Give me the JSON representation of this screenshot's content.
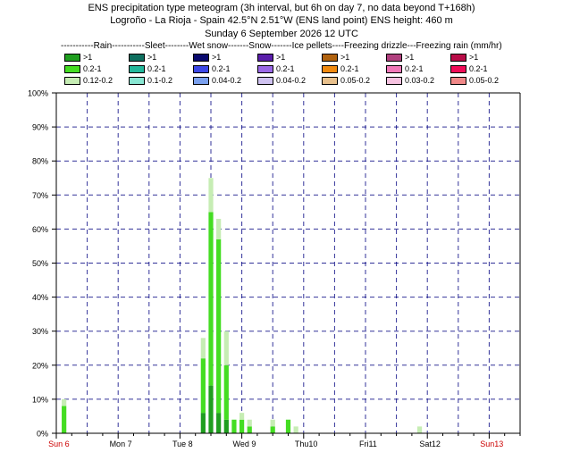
{
  "title_lines": [
    "ENS precipitation type meteogram (3h interval, but 6h on day 7, no data beyond T+168h)",
    "Logroño - La Rioja - Spain 42.5°N 2.51°W (ENS land point) ENS height: 460 m",
    "Sunday  6 September 2026 12 UTC"
  ],
  "legend_header": "-----------Rain-----------Sleet--------Wet snow-------Snow-------Ice pellets----Freezing drizzle---Freezing rain (mm/hr)",
  "legend": [
    {
      "type": "Rain",
      "entries": [
        {
          "label": ">1",
          "color": "#1f9e1f"
        },
        {
          "label": "0.2-1",
          "color": "#44dd22"
        },
        {
          "label": "0.12-0.2",
          "color": "#c6edb4"
        }
      ]
    },
    {
      "type": "Sleet",
      "entries": [
        {
          "label": ">1",
          "color": "#0d6e5e"
        },
        {
          "label": "0.2-1",
          "color": "#22b99c"
        },
        {
          "label": "0.1-0.2",
          "color": "#88e6d2"
        }
      ]
    },
    {
      "type": "Wet snow",
      "entries": [
        {
          "label": ">1",
          "color": "#0a0a6e"
        },
        {
          "label": "0.2-1",
          "color": "#3c48e6"
        },
        {
          "label": "0.04-0.2",
          "color": "#7aa0ee"
        }
      ]
    },
    {
      "type": "Snow",
      "entries": [
        {
          "label": ">1",
          "color": "#5a1eaa"
        },
        {
          "label": "0.2-1",
          "color": "#9a68e6"
        },
        {
          "label": "0.04-0.2",
          "color": "#cfc2f0"
        }
      ]
    },
    {
      "type": "Ice pellets",
      "entries": [
        {
          "label": ">1",
          "color": "#b0620e"
        },
        {
          "label": "0.2-1",
          "color": "#f08a10"
        },
        {
          "label": "0.05-0.2",
          "color": "#e8c08c"
        }
      ]
    },
    {
      "type": "Freezing drizzle",
      "entries": [
        {
          "label": ">1",
          "color": "#b0407e"
        },
        {
          "label": "0.2-1",
          "color": "#f078b8"
        },
        {
          "label": "0.03-0.2",
          "color": "#f6c2e0"
        }
      ]
    },
    {
      "type": "Freezing rain",
      "entries": [
        {
          "label": ">1",
          "color": "#b80c48"
        },
        {
          "label": "0.2-1",
          "color": "#f00c58"
        },
        {
          "label": "0.05-0.2",
          "color": "#f08888"
        }
      ]
    }
  ],
  "chart_data": {
    "type": "bar",
    "stacked": true,
    "unit": "%",
    "ylim": [
      0,
      100
    ],
    "yticks": [
      0,
      10,
      20,
      30,
      40,
      50,
      60,
      70,
      80,
      90,
      100
    ],
    "ytick_labels": [
      "0%",
      "10%",
      "20%",
      "30%",
      "40%",
      "50%",
      "60%",
      "70%",
      "80%",
      "90%",
      "100%"
    ],
    "x_unit": "hours since base time (Sun 6 12 UTC)",
    "xlim": [
      0,
      180
    ],
    "day_ticks": [
      {
        "label": "Sun 6",
        "at": 0,
        "color": "#cc0000"
      },
      {
        "label": "Mon 7",
        "at": 24,
        "color": "#000000"
      },
      {
        "label": "Tue 8",
        "at": 48,
        "color": "#000000"
      },
      {
        "label": "Wed 9",
        "at": 72,
        "color": "#000000"
      },
      {
        "label": "Thu10",
        "at": 96,
        "color": "#000000"
      },
      {
        "label": "Fri11",
        "at": 120,
        "color": "#000000"
      },
      {
        "label": "Sat12",
        "at": 144,
        "color": "#000000"
      },
      {
        "label": "Sun13",
        "at": 168,
        "color": "#cc0000"
      }
    ],
    "grid": true,
    "series": [
      {
        "name": ">1",
        "color": "#1f9e1f"
      },
      {
        "name": "0.2-1",
        "color": "#44dd22"
      },
      {
        "name": "0.12-0.2",
        "color": "#c6edb4"
      }
    ],
    "bars": [
      {
        "x": 3,
        "values": [
          0,
          8,
          2
        ]
      },
      {
        "x": 57,
        "values": [
          6,
          16,
          6
        ]
      },
      {
        "x": 60,
        "values": [
          14,
          51,
          10
        ]
      },
      {
        "x": 63,
        "values": [
          6,
          51,
          6
        ]
      },
      {
        "x": 66,
        "values": [
          4,
          16,
          10
        ]
      },
      {
        "x": 69,
        "values": [
          0,
          4,
          0
        ]
      },
      {
        "x": 72,
        "values": [
          0,
          4,
          2
        ]
      },
      {
        "x": 75,
        "values": [
          0,
          2,
          2
        ]
      },
      {
        "x": 84,
        "values": [
          0,
          2,
          2
        ]
      },
      {
        "x": 90,
        "values": [
          0,
          4,
          0
        ]
      },
      {
        "x": 93,
        "values": [
          0,
          0,
          2
        ]
      },
      {
        "x": 141,
        "values": [
          0,
          0,
          2
        ]
      }
    ]
  }
}
